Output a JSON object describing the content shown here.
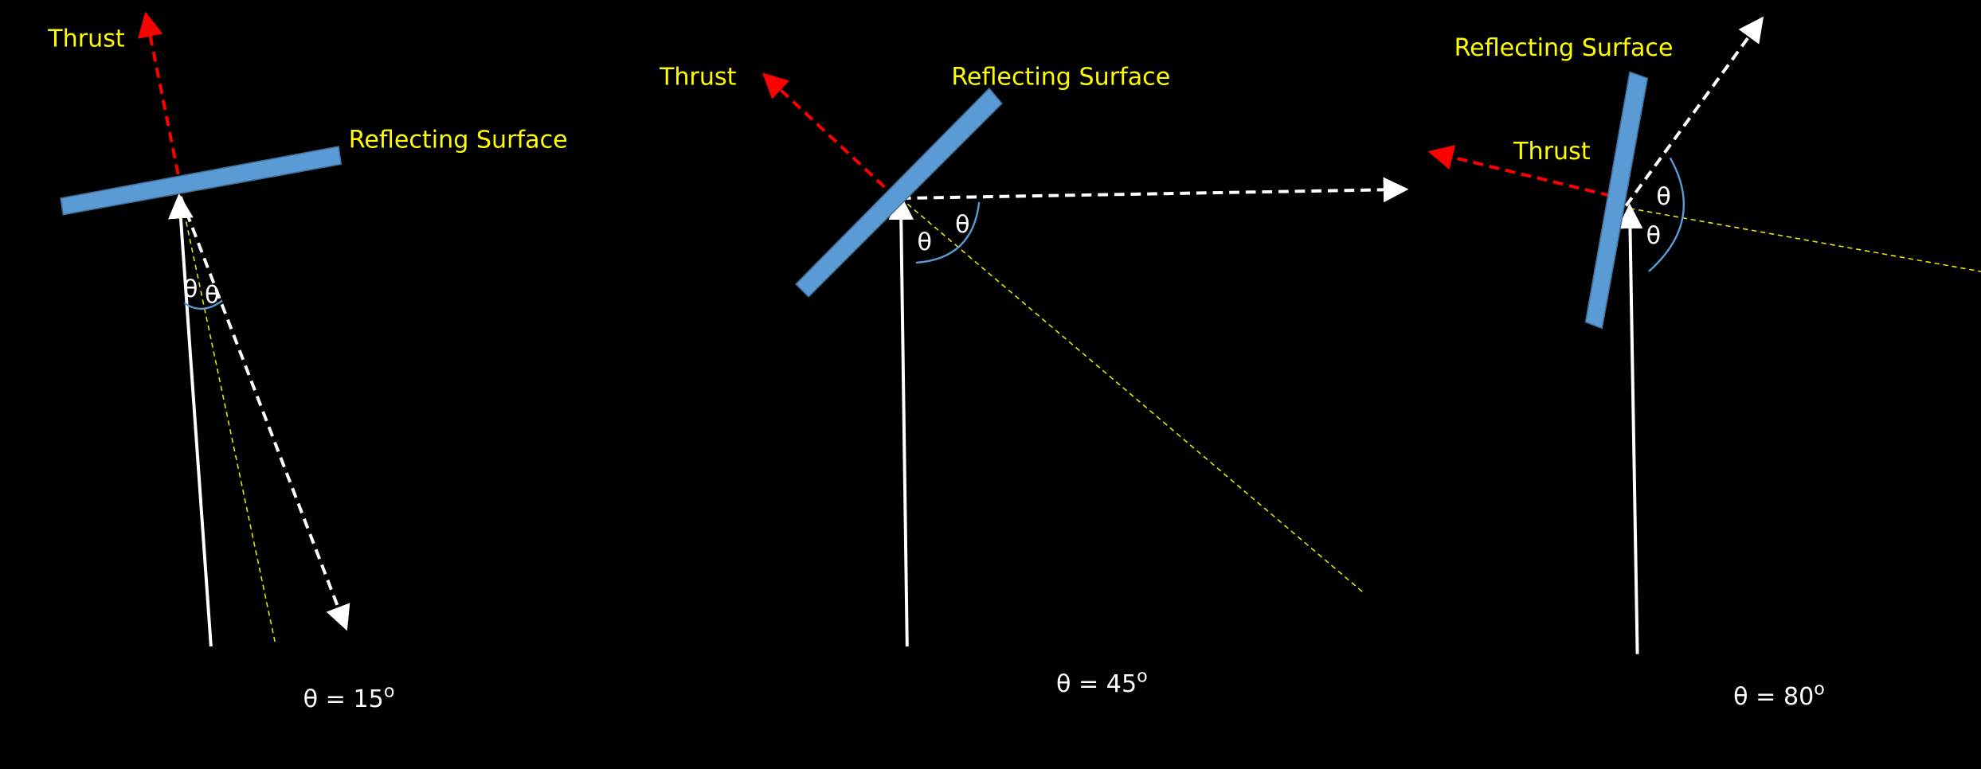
{
  "panels": [
    {
      "thrust_label": "Thrust",
      "surface_label": "Reflecting Surface",
      "angle_labels": [
        "θ",
        "θ"
      ],
      "caption": {
        "text": "θ = 15",
        "sup": "o"
      }
    },
    {
      "thrust_label": "Thrust",
      "surface_label": "Reflecting Surface",
      "angle_labels": [
        "θ",
        "θ"
      ],
      "caption": {
        "text": "θ = 45",
        "sup": "o"
      }
    },
    {
      "thrust_label": "Thrust",
      "surface_label": "Reflecting Surface",
      "angle_labels": [
        "θ",
        "θ"
      ],
      "caption": {
        "text": "θ = 80",
        "sup": "o"
      }
    }
  ]
}
